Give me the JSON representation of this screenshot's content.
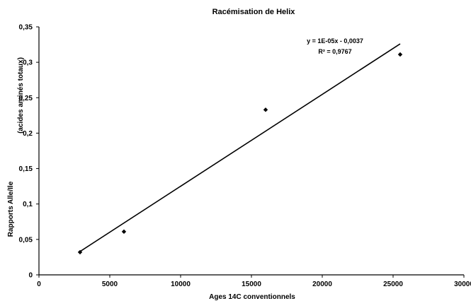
{
  "chart_data": {
    "type": "scatter",
    "title": "Racémisation de Helix",
    "xlabel": "Ages 14C conventionnels",
    "ylabel_line1": "Rapports Alle/Ile",
    "ylabel_line2": "(acides aminés totaux)",
    "xlim": [
      0,
      30000
    ],
    "ylim": [
      0,
      0.35
    ],
    "x_ticks": [
      0,
      5000,
      10000,
      15000,
      20000,
      25000,
      30000
    ],
    "x_tick_labels": [
      "0",
      "5000",
      "10000",
      "15000",
      "20000",
      "25000",
      "30000"
    ],
    "y_ticks": [
      0,
      0.05,
      0.1,
      0.15,
      0.2,
      0.25,
      0.3,
      0.35
    ],
    "y_tick_labels": [
      "0",
      "0,05",
      "0,1",
      "0,15",
      "0,2",
      "0,25",
      "0,3",
      "0,35"
    ],
    "grid": false,
    "legend": "none",
    "series": [
      {
        "points": [
          {
            "x": 2900,
            "y": 0.032
          },
          {
            "x": 6000,
            "y": 0.061
          },
          {
            "x": 16000,
            "y": 0.233
          },
          {
            "x": 25500,
            "y": 0.311
          }
        ]
      }
    ],
    "trendline": {
      "type": "linear",
      "x_range": [
        2900,
        25500
      ],
      "equation": "y = 1E-05x - 0,0037",
      "r_squared": "R² = 0,9767"
    },
    "colors": {
      "points": "#000000",
      "line": "#000000",
      "axis": "#000000"
    }
  }
}
